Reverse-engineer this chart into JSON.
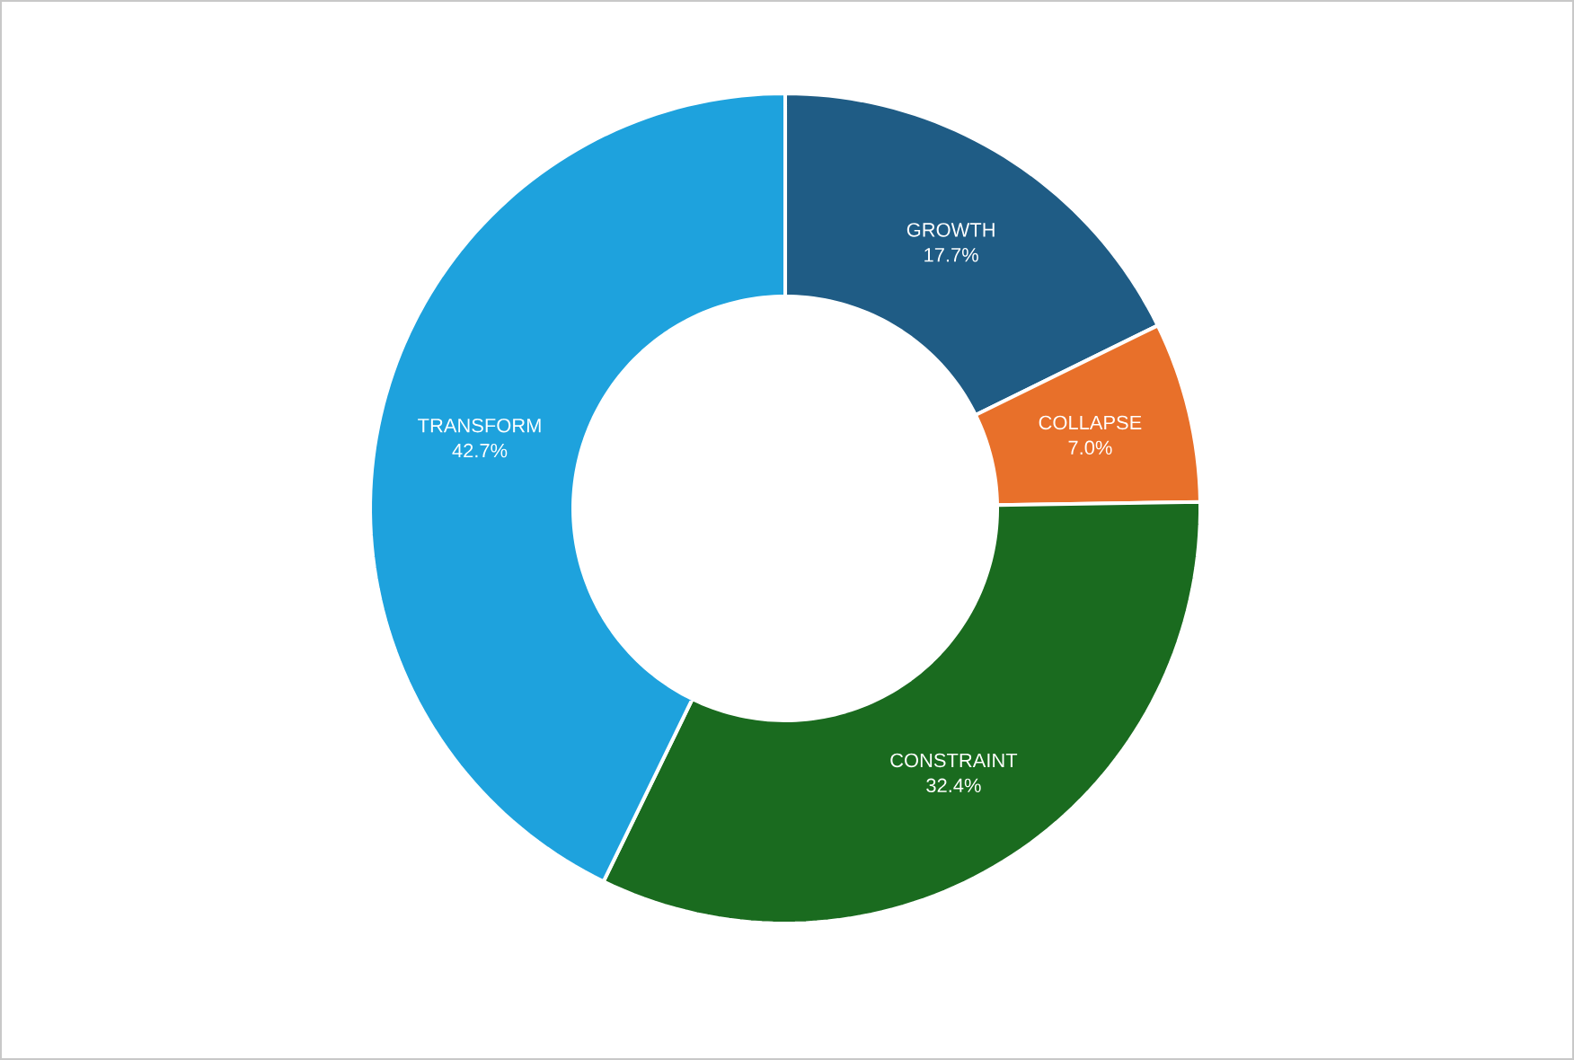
{
  "chart_data": {
    "type": "donut",
    "categories": [
      "GROWTH",
      "COLLAPSE",
      "CONSTRAINT",
      "TRANSFORM"
    ],
    "values": [
      17.7,
      7.0,
      32.4,
      42.7
    ],
    "value_labels": [
      "17.7%",
      "7.0%",
      "32.4%",
      "42.7%"
    ],
    "colors": [
      "#1f5c85",
      "#e8702a",
      "#1a6b1f",
      "#1ea2dd"
    ]
  }
}
